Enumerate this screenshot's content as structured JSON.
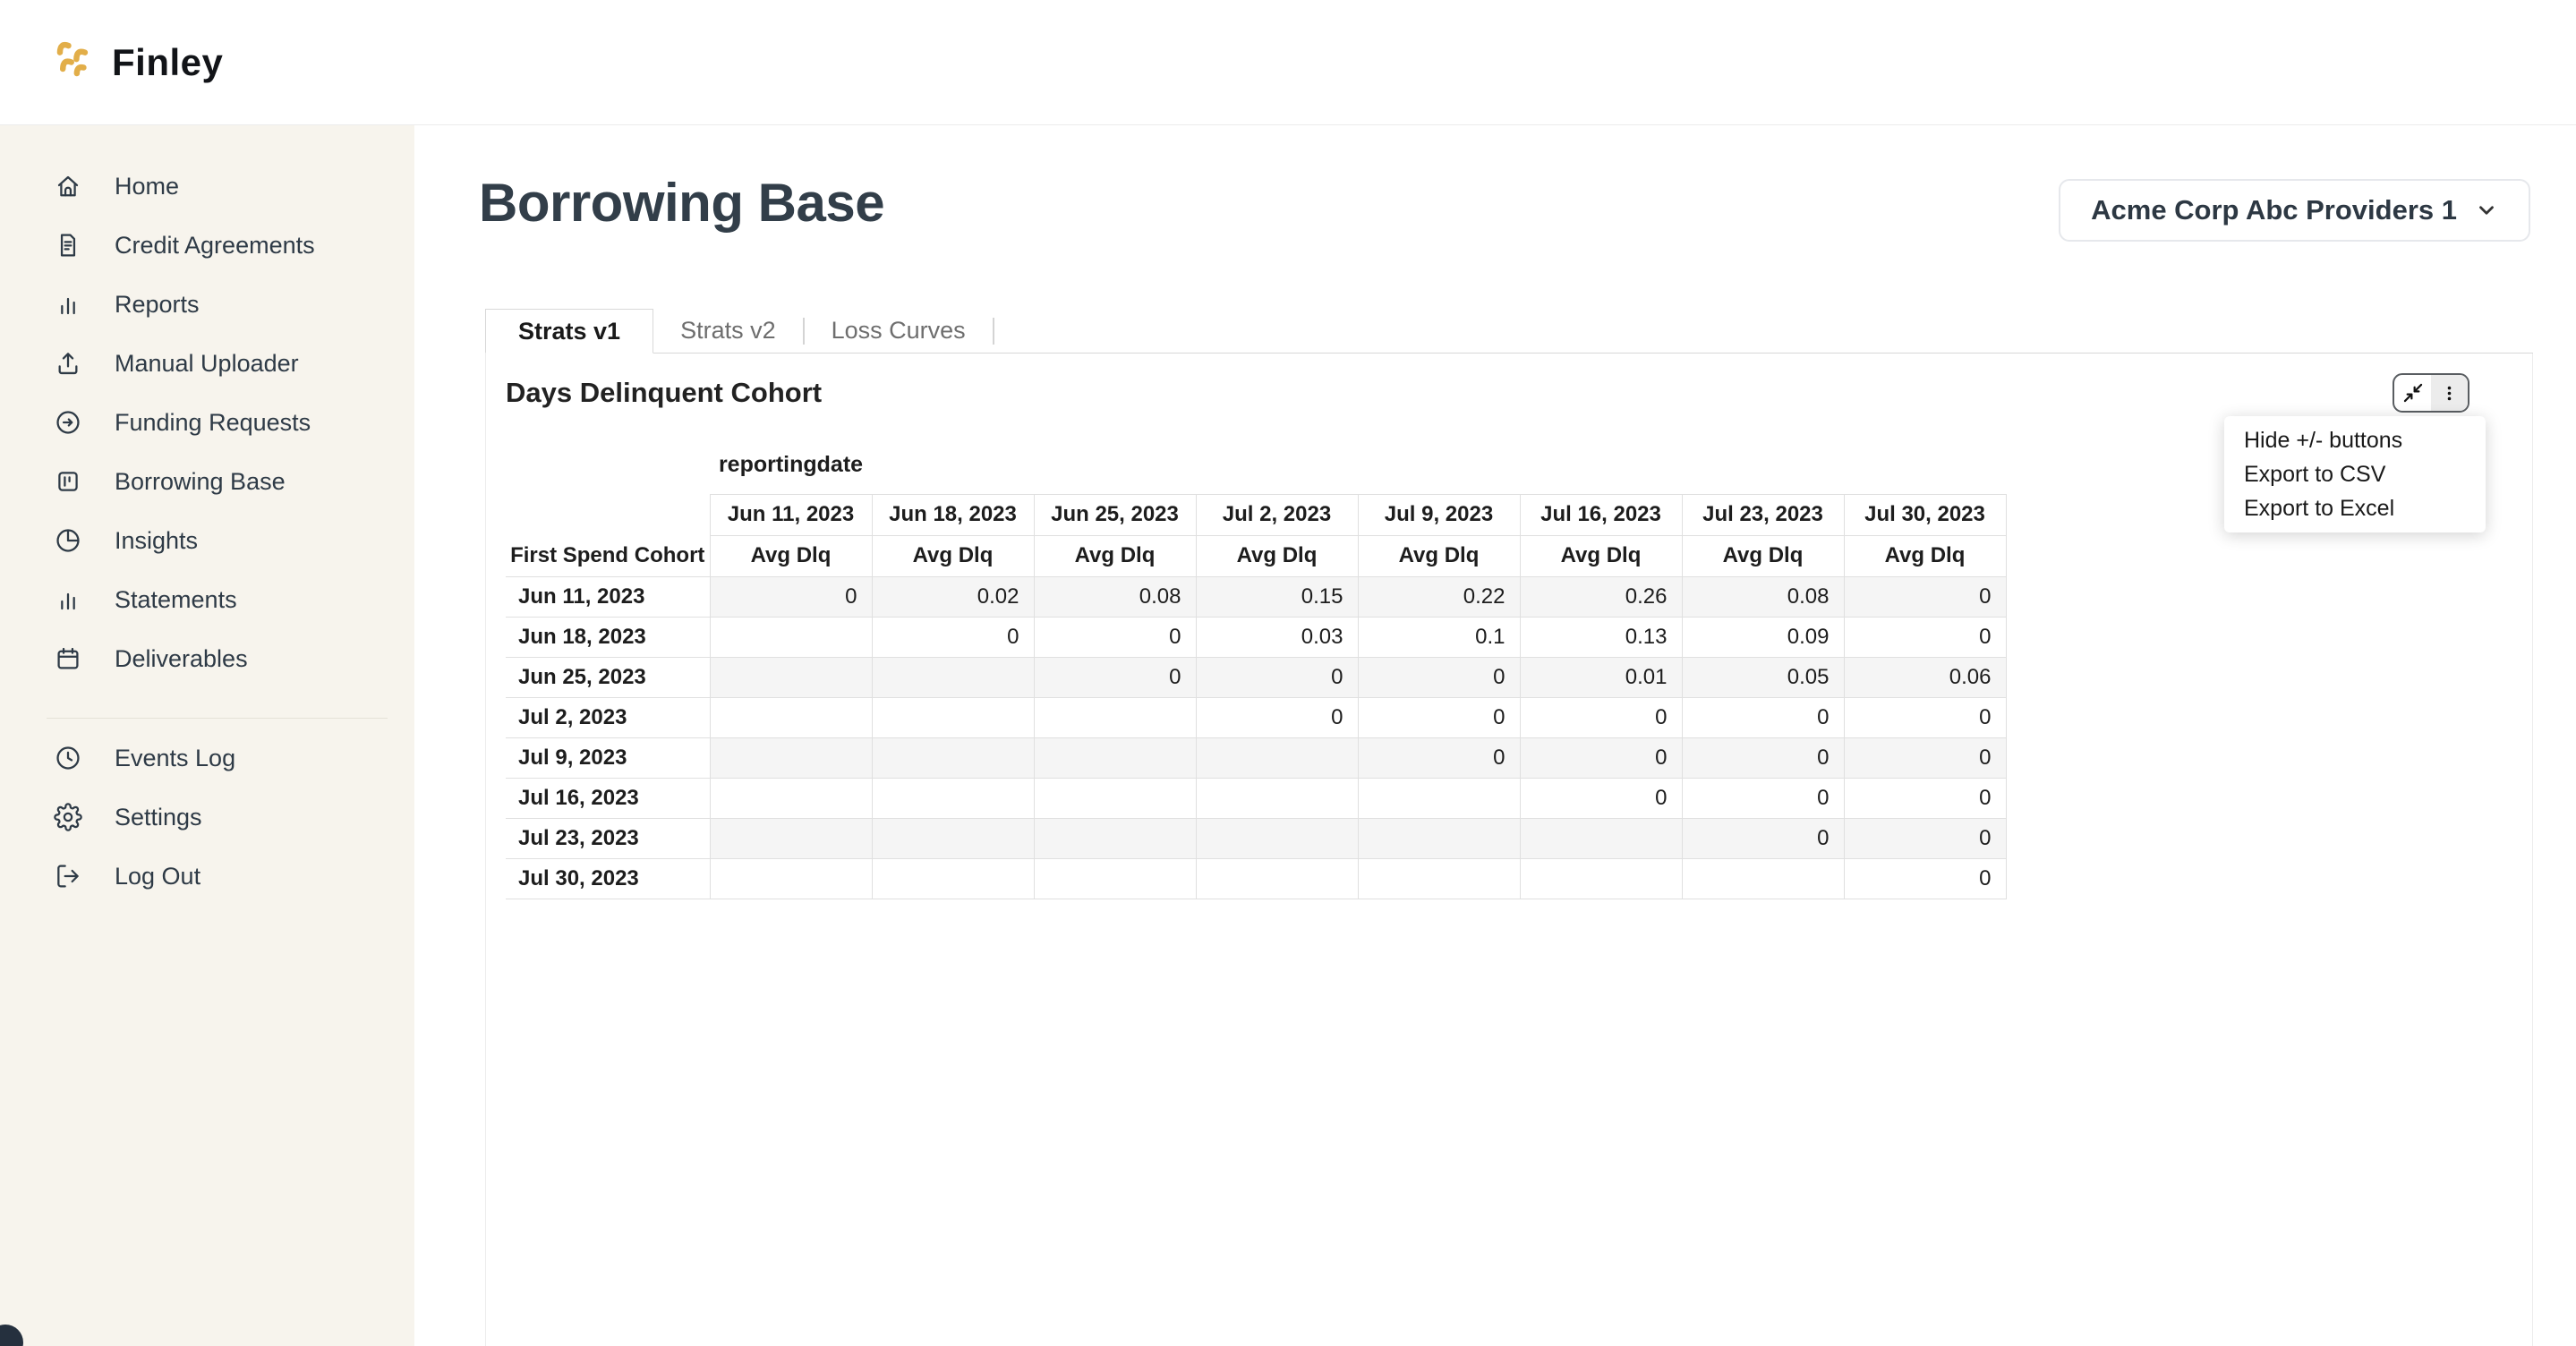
{
  "app": {
    "logo_text": "Finley"
  },
  "colors": {
    "brand_gold": "#E2AE49",
    "sidebar_bg": "#F7F4ED",
    "sidebar_text": "#2E3A46",
    "title_text": "#323E49",
    "table_border": "#E0E0E0",
    "zebra_row": "#F5F5F5",
    "corner_widget": "#25303E"
  },
  "header": {
    "title": "Borrowing Base",
    "entity_selector": {
      "label": "Acme Corp Abc Providers 1",
      "icon": "chevron-down-icon"
    }
  },
  "sidebar": {
    "items": [
      {
        "label": "Home",
        "icon": "home-icon"
      },
      {
        "label": "Credit Agreements",
        "icon": "document-icon"
      },
      {
        "label": "Reports",
        "icon": "bar-chart-icon"
      },
      {
        "label": "Manual Uploader",
        "icon": "upload-icon"
      },
      {
        "label": "Funding Requests",
        "icon": "arrow-right-circle-icon"
      },
      {
        "label": "Borrowing Base",
        "icon": "wallet-icon"
      },
      {
        "label": "Insights",
        "icon": "pie-chart-icon"
      },
      {
        "label": "Statements",
        "icon": "bar-chart-icon"
      },
      {
        "label": "Deliverables",
        "icon": "calendar-icon"
      }
    ],
    "footer_items": [
      {
        "label": "Events Log",
        "icon": "clock-icon"
      },
      {
        "label": "Settings",
        "icon": "gear-icon"
      },
      {
        "label": "Log Out",
        "icon": "logout-icon"
      }
    ]
  },
  "tabs": [
    {
      "label": "Strats v1",
      "active": true
    },
    {
      "label": "Strats v2",
      "active": false
    },
    {
      "label": "Loss Curves",
      "active": false
    }
  ],
  "panel": {
    "card_title": "Days Delinquent Cohort",
    "pivot_axis_label": "reportingdate",
    "toolbar": {
      "icons": [
        "collapse-icon",
        "kebab-menu-icon"
      ]
    },
    "menu": {
      "items": [
        "Hide +/- buttons",
        "Export to CSV",
        "Export to Excel"
      ]
    },
    "table": {
      "row_axis_label": "First Spend Cohort",
      "column_subheader": "Avg Dlq",
      "column_headers": [
        "Jun 11, 2023",
        "Jun 18, 2023",
        "Jun 25, 2023",
        "Jul 2, 2023",
        "Jul 9, 2023",
        "Jul 16, 2023",
        "Jul 23, 2023",
        "Jul 30, 2023"
      ],
      "row_headers": [
        "Jun 11, 2023",
        "Jun 18, 2023",
        "Jun 25, 2023",
        "Jul 2, 2023",
        "Jul 9, 2023",
        "Jul 16, 2023",
        "Jul 23, 2023",
        "Jul 30, 2023"
      ],
      "values": [
        [
          0,
          0.02,
          0.08,
          0.15,
          0.22,
          0.26,
          0.08,
          0
        ],
        [
          null,
          0,
          0,
          0.03,
          0.1,
          0.13,
          0.09,
          0
        ],
        [
          null,
          null,
          0,
          0,
          0,
          0.01,
          0.05,
          0.06
        ],
        [
          null,
          null,
          null,
          0,
          0,
          0,
          0,
          0
        ],
        [
          null,
          null,
          null,
          null,
          0,
          0,
          0,
          0
        ],
        [
          null,
          null,
          null,
          null,
          null,
          0,
          0,
          0
        ],
        [
          null,
          null,
          null,
          null,
          null,
          null,
          0,
          0
        ],
        [
          null,
          null,
          null,
          null,
          null,
          null,
          null,
          0
        ]
      ]
    }
  }
}
